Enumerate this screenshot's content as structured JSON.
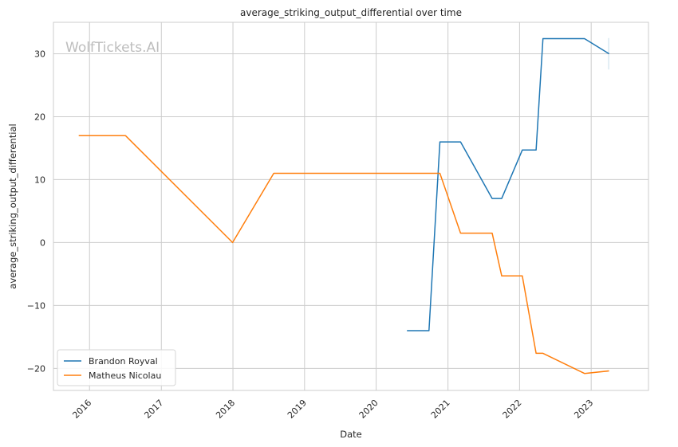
{
  "chart_data": {
    "type": "line",
    "title": "average_striking_output_differential over time",
    "xlabel": "Date",
    "ylabel": "average_striking_output_differential",
    "watermark": "WolfTickets.AI",
    "xlim": [
      "2015-07-01",
      "2023-10-20"
    ],
    "ylim": [
      -23.5,
      35
    ],
    "x_ticks": [
      "2016",
      "2017",
      "2018",
      "2019",
      "2020",
      "2021",
      "2022",
      "2023"
    ],
    "y_ticks": [
      -20,
      -10,
      0,
      10,
      20,
      30
    ],
    "grid": true,
    "legend_position": "lower-left",
    "series": [
      {
        "name": "Brandon Royval",
        "color": "#1f77b4",
        "points": [
          [
            "2020-06-06",
            -14
          ],
          [
            "2020-09-26",
            -14
          ],
          [
            "2020-11-21",
            16
          ],
          [
            "2021-03-06",
            16
          ],
          [
            "2021-08-14",
            7
          ],
          [
            "2021-10-02",
            7
          ],
          [
            "2022-01-15",
            14.7
          ],
          [
            "2022-03-26",
            14.7
          ],
          [
            "2022-04-30",
            32.4
          ],
          [
            "2022-11-28",
            32.4
          ],
          [
            "2023-04-02",
            30
          ]
        ]
      },
      {
        "name": "Matheus Nicolau",
        "color": "#ff7f0e",
        "points": [
          [
            "2015-11-07",
            17
          ],
          [
            "2016-07-02",
            17
          ],
          [
            "2017-12-30",
            0
          ],
          [
            "2018-07-28",
            11
          ],
          [
            "2020-11-21",
            11
          ],
          [
            "2021-03-06",
            1.5
          ],
          [
            "2021-08-14",
            1.5
          ],
          [
            "2021-10-02",
            -5.3
          ],
          [
            "2022-01-15",
            -5.3
          ],
          [
            "2022-03-26",
            -17.6
          ],
          [
            "2022-04-30",
            -17.6
          ],
          [
            "2022-11-28",
            -20.8
          ],
          [
            "2023-04-02",
            -20.4
          ]
        ]
      }
    ]
  }
}
